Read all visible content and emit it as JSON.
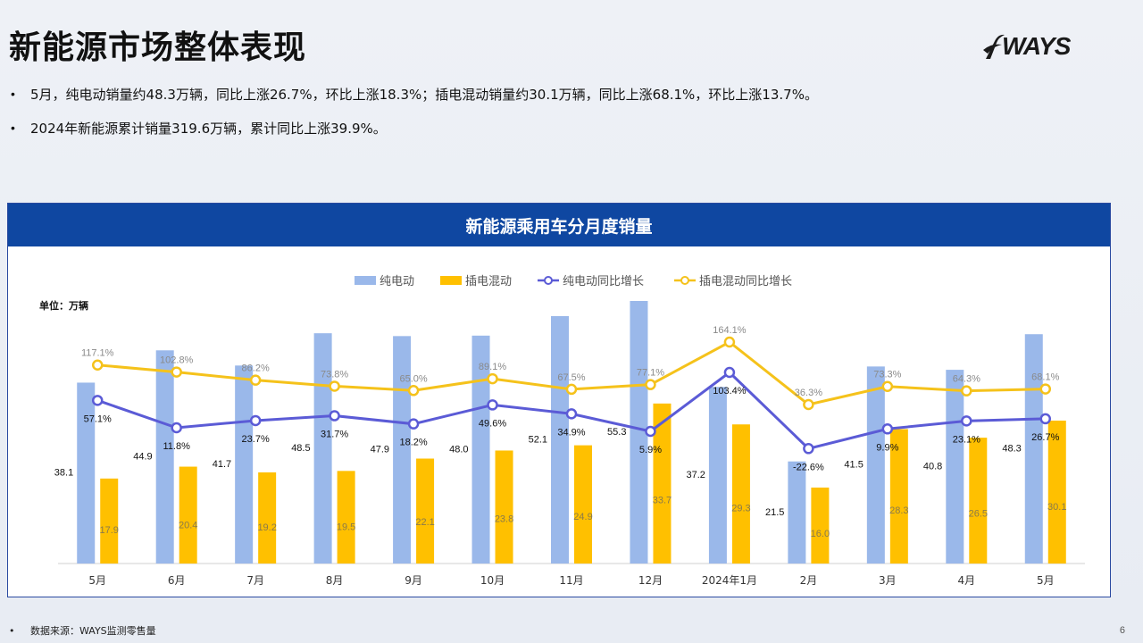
{
  "page": {
    "title": "新能源市场整体表现",
    "logo_text": "WAYS",
    "page_number": "6"
  },
  "bullets": [
    "5月，纯电动销量约48.3万辆，同比上涨26.7%，环比上涨18.3%；插电混动销量约30.1万辆，同比上涨68.1%，环比上涨13.7%。",
    "2024年新能源累计销量319.6万辆，累计同比上涨39.9%。"
  ],
  "footer": {
    "source": "数据来源：WAYS监测零售量"
  },
  "colors": {
    "bev": "#9ab8ea",
    "phev": "#ffc000",
    "bev_growth": "#5b5bd6",
    "phev_growth": "#f5c21b",
    "header": "#0f47a1"
  },
  "chart_data": {
    "type": "bar",
    "title": "新能源乘用车分月度销量",
    "unit_label": "单位：万辆",
    "legend_position": "top",
    "categories": [
      "5月",
      "6月",
      "7月",
      "8月",
      "9月",
      "10月",
      "11月",
      "12月",
      "2024年1月",
      "2月",
      "3月",
      "4月",
      "5月"
    ],
    "series": [
      {
        "name": "纯电动",
        "kind": "bar",
        "values": [
          38.1,
          44.9,
          41.7,
          48.5,
          47.9,
          48.0,
          52.1,
          55.3,
          37.2,
          21.5,
          41.5,
          40.8,
          48.3
        ]
      },
      {
        "name": "插电混动",
        "kind": "bar",
        "values": [
          17.9,
          20.4,
          19.2,
          19.5,
          22.1,
          23.8,
          24.9,
          33.7,
          29.3,
          16.0,
          28.3,
          26.5,
          30.1
        ]
      },
      {
        "name": "纯电动同比增长",
        "kind": "line",
        "unit": "%",
        "values": [
          57.1,
          11.8,
          23.7,
          31.7,
          18.2,
          49.6,
          34.9,
          5.9,
          103.4,
          -22.6,
          9.9,
          23.1,
          26.7
        ]
      },
      {
        "name": "插电混动同比增长",
        "kind": "line",
        "unit": "%",
        "values": [
          117.1,
          102.8,
          86.2,
          73.8,
          65.0,
          89.1,
          67.5,
          77.1,
          164.1,
          36.3,
          73.3,
          64.3,
          68.1
        ]
      }
    ]
  }
}
